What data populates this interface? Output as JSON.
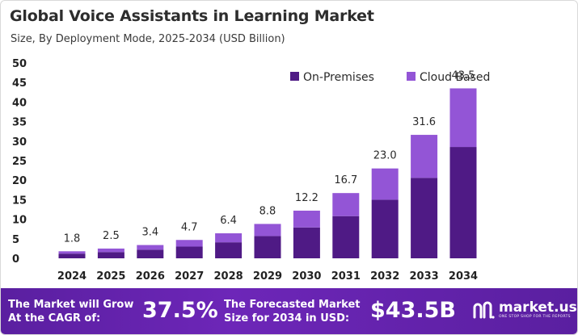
{
  "title": "Global Voice Assistants in Learning Market",
  "subtitle": "Size, By Deployment Mode, 2025-2034 (USD Billion)",
  "colors": {
    "on_premises": "#4f1a85",
    "cloud_based": "#9355d6",
    "axis_text": "#222222",
    "footer_bg": "#5e22a6"
  },
  "chart_data": {
    "type": "bar",
    "stacked": true,
    "categories": [
      "2024",
      "2025",
      "2026",
      "2027",
      "2028",
      "2029",
      "2030",
      "2031",
      "2032",
      "2033",
      "2034"
    ],
    "series": [
      {
        "name": "On-Premises",
        "values": [
          1.2,
          1.6,
          2.2,
          3.0,
          4.1,
          5.7,
          7.9,
          10.8,
          15.0,
          20.6,
          28.5
        ]
      },
      {
        "name": "Cloud Based",
        "values": [
          0.6,
          0.9,
          1.2,
          1.7,
          2.3,
          3.1,
          4.3,
          5.9,
          8.0,
          11.0,
          15.0
        ]
      }
    ],
    "totals": [
      "1.8",
      "2.5",
      "3.4",
      "4.7",
      "6.4",
      "8.8",
      "12.2",
      "16.7",
      "23.0",
      "31.6",
      "43.5"
    ],
    "ylim": [
      0,
      50
    ],
    "yticks": [
      0,
      5,
      10,
      15,
      20,
      25,
      30,
      35,
      40,
      45,
      50
    ],
    "grid": false,
    "legend_position": "top-right"
  },
  "footer": {
    "cagr_label": "The Market will Grow At the CAGR of:",
    "cagr_value": "37.5%",
    "forecast_label": "The Forecasted Market Size for 2034 in USD:",
    "forecast_value": "$43.5B",
    "brand_name": "market.us",
    "brand_tagline": "ONE STOP SHOP FOR THE REPORTS",
    "brand_icon": "market-us-logo-icon"
  }
}
